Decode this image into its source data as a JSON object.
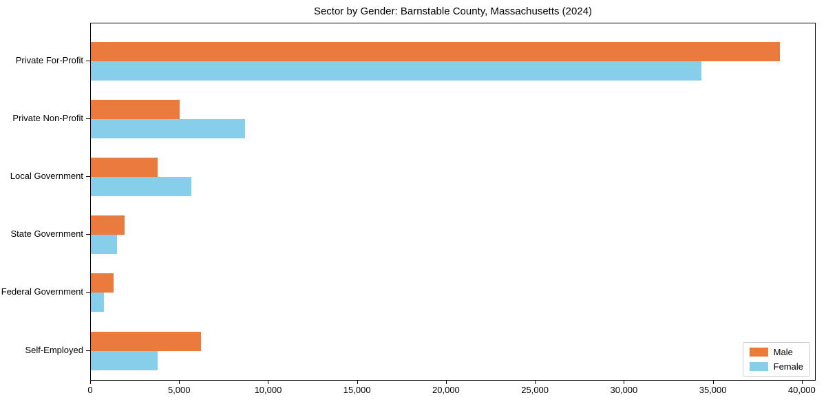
{
  "title": "Sector by Gender: Barnstable County, Massachusetts (2024)",
  "chart_data": {
    "type": "bar",
    "orientation": "horizontal",
    "title": "Sector by Gender: Barnstable County, Massachusetts (2024)",
    "xlabel": "",
    "ylabel": "",
    "categories": [
      "Private For-Profit",
      "Private Non-Profit",
      "Local Government",
      "State Government",
      "Federal Government",
      "Self-Employed"
    ],
    "series": [
      {
        "name": "Male",
        "color": "#EB7B3C",
        "values": [
          38800,
          5000,
          3750,
          1900,
          1265,
          6200
        ]
      },
      {
        "name": "Female",
        "color": "#87CEEB",
        "values": [
          34400,
          8700,
          5650,
          1470,
          735,
          3750
        ]
      }
    ],
    "xlim": [
      0,
      40000
    ],
    "xticks": [
      0,
      5000,
      10000,
      15000,
      20000,
      25000,
      30000,
      35000,
      40000
    ],
    "xtick_labels": [
      "0",
      "5,000",
      "10,000",
      "15,000",
      "20,000",
      "25,000",
      "30,000",
      "35,000",
      "40,000"
    ],
    "grid": false,
    "legend_position": "lower right"
  },
  "legend": {
    "items": [
      {
        "label": "Male",
        "color": "#EB7B3C"
      },
      {
        "label": "Female",
        "color": "#87CEEB"
      }
    ]
  }
}
